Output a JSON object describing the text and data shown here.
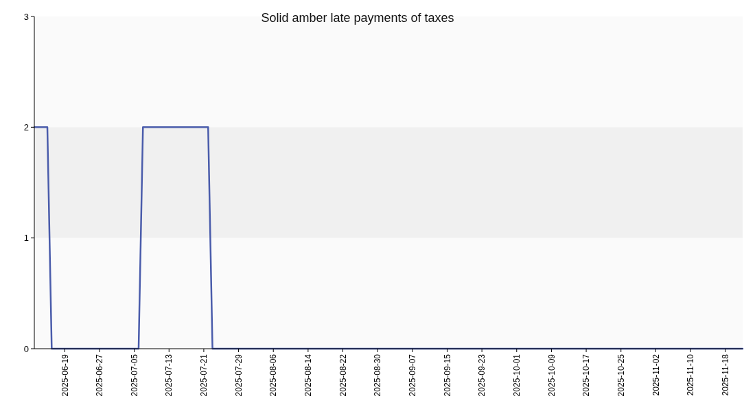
{
  "chart_data": {
    "type": "line",
    "title": "Solid amber late payments of taxes",
    "x": [
      "2025-06-12",
      "2025-06-15",
      "2025-06-16",
      "2025-07-06",
      "2025-07-07",
      "2025-07-22",
      "2025-07-23",
      "2025-11-22"
    ],
    "series": [
      {
        "color": "#4a5cab",
        "values": [
          2,
          2,
          0,
          0,
          2,
          2,
          0,
          0
        ]
      }
    ],
    "xlim": [
      "2025-06-12",
      "2025-11-22"
    ],
    "xticks": [
      "2025-06-19",
      "2025-06-27",
      "2025-07-05",
      "2025-07-13",
      "2025-07-21",
      "2025-07-29",
      "2025-08-06",
      "2025-08-14",
      "2025-08-22",
      "2025-08-30",
      "2025-09-07",
      "2025-09-15",
      "2025-09-23",
      "2025-10-01",
      "2025-10-09",
      "2025-10-17",
      "2025-10-25",
      "2025-11-02",
      "2025-11-10",
      "2025-11-18"
    ],
    "ylim": [
      0,
      3
    ],
    "yticks": [
      0,
      1,
      2,
      3
    ],
    "bands": [
      {
        "axis": "y",
        "from": 1,
        "to": 2,
        "color": "#f0f0f0"
      }
    ],
    "marker": "none",
    "line_style": "solid"
  }
}
